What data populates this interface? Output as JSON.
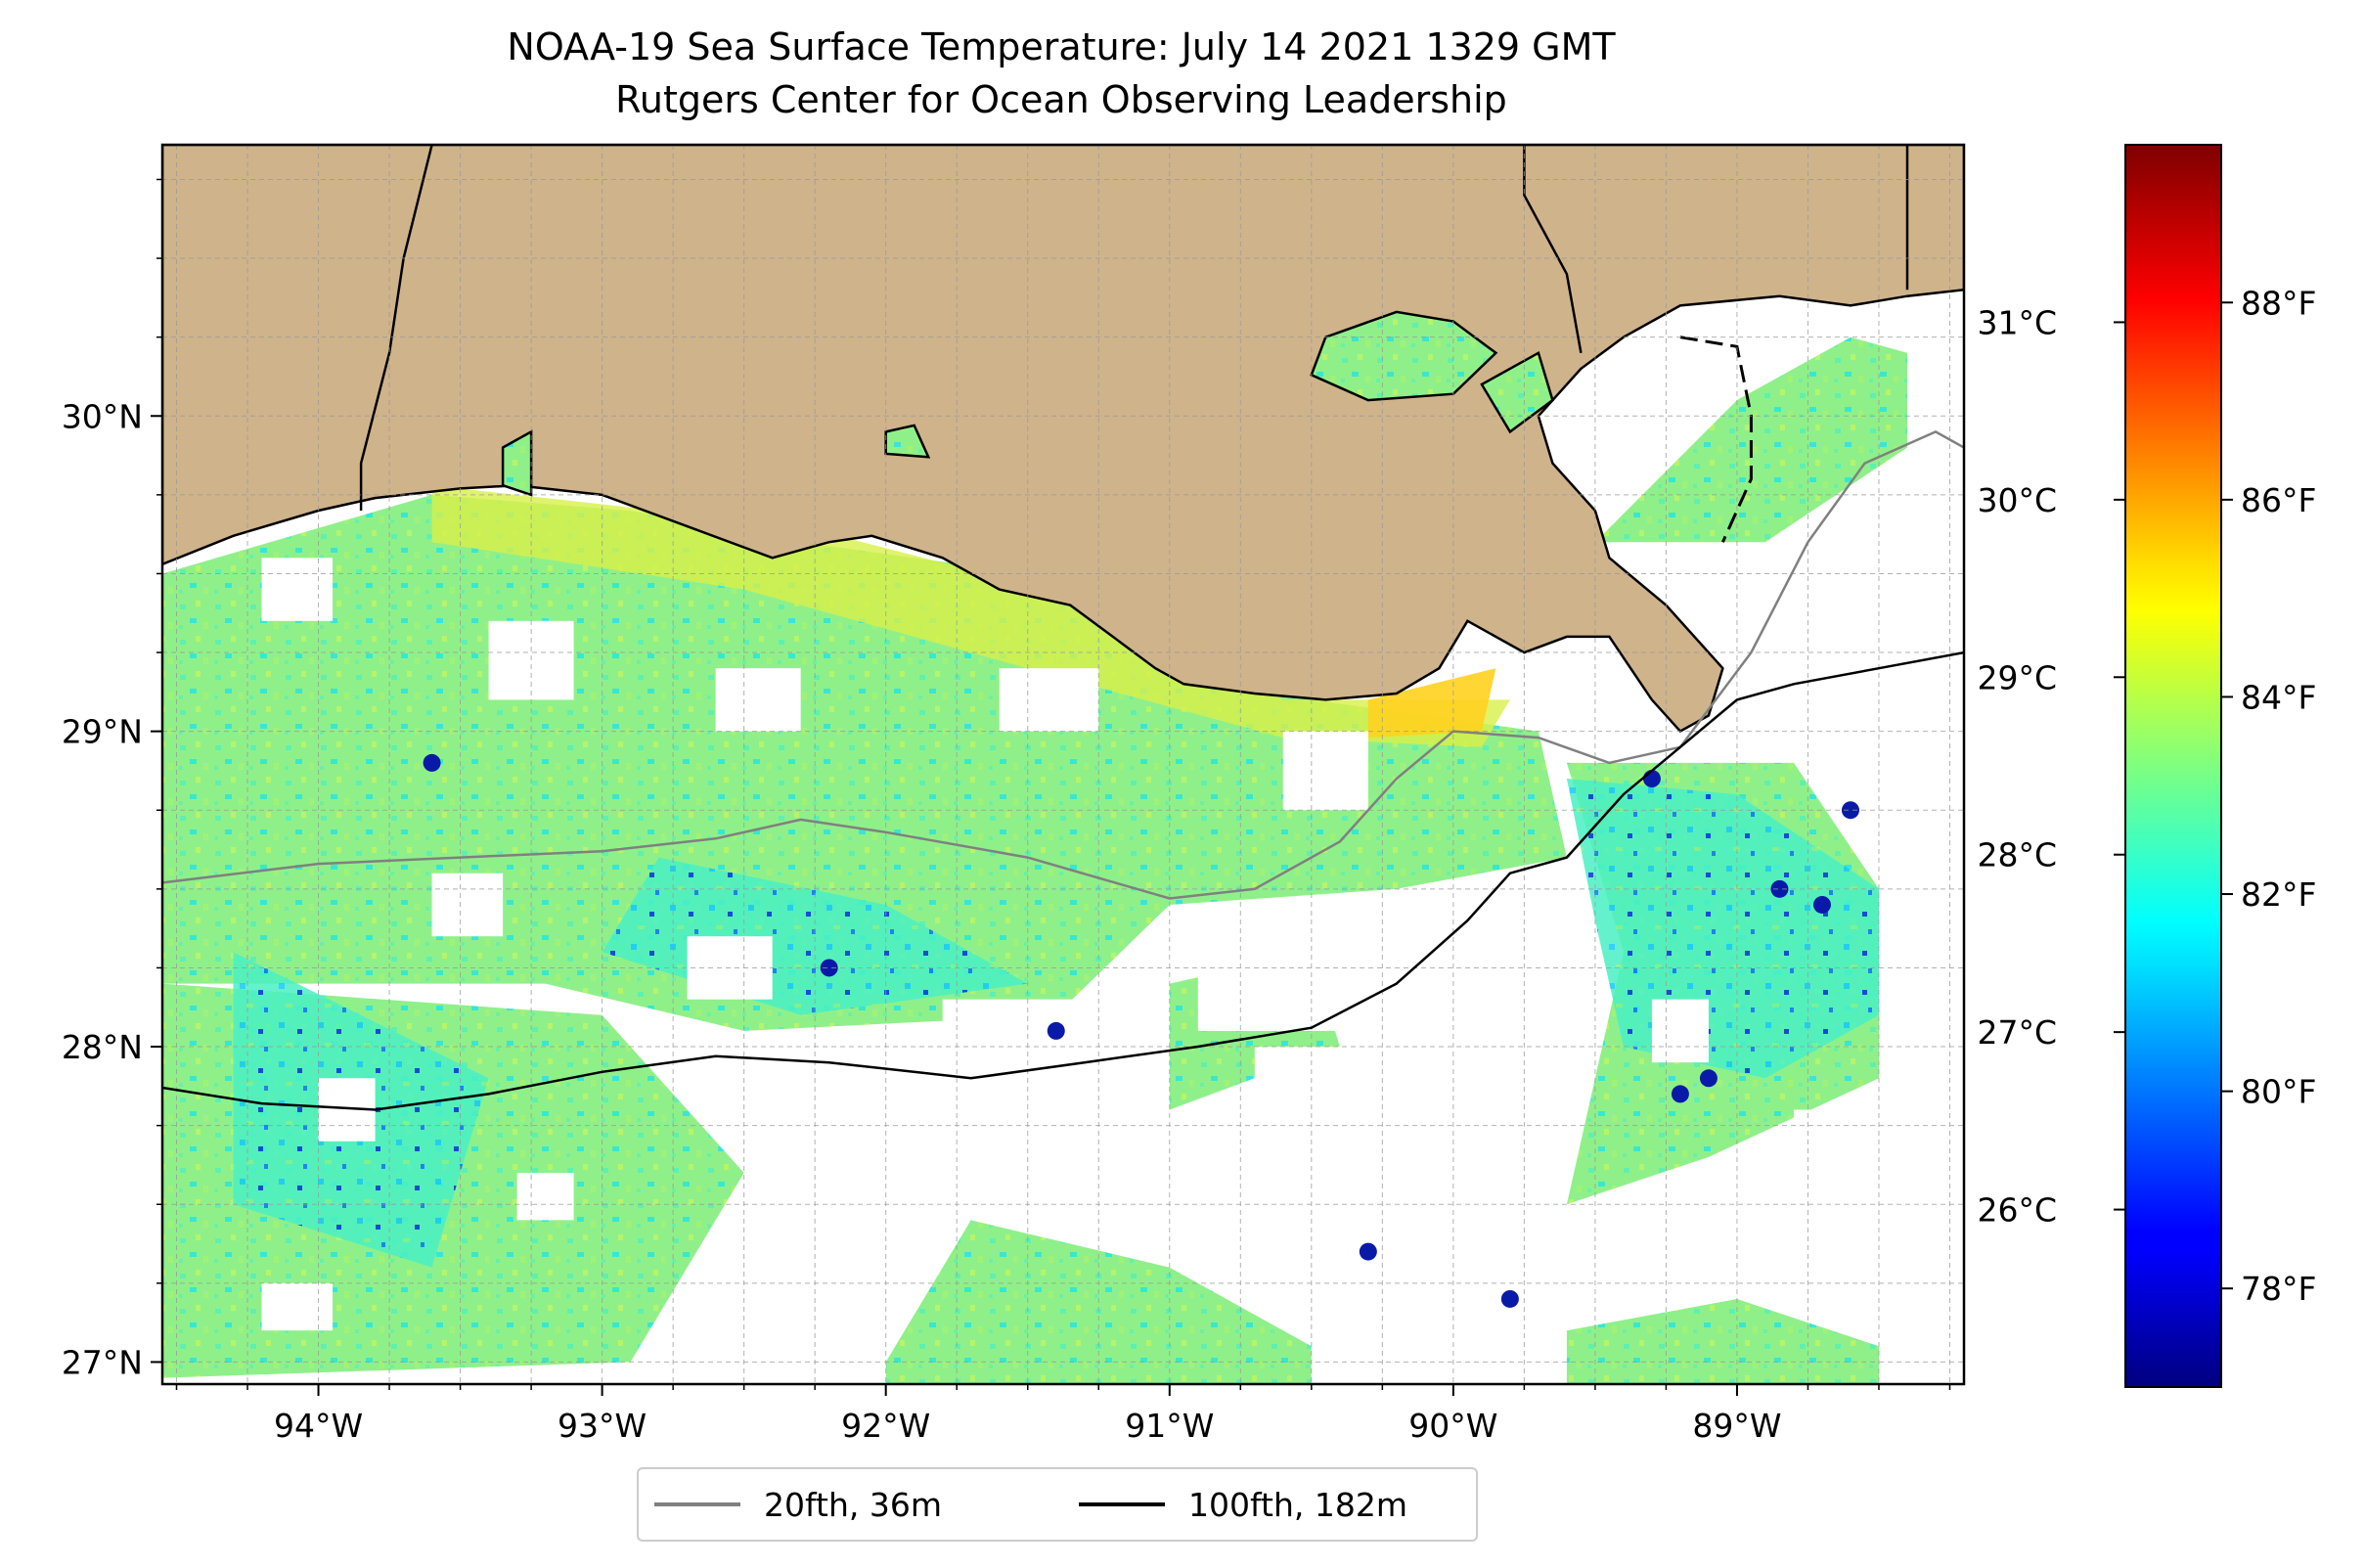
{
  "title": {
    "line1": "NOAA-19 Sea Surface Temperature: July 14 2021 1329 GMT",
    "line2": "Rutgers Center for Ocean Observing Leadership"
  },
  "map": {
    "lon_range": [
      -94.55,
      -88.2
    ],
    "lat_range": [
      26.93,
      30.86
    ],
    "grid": true,
    "land_color": "#cfb38b",
    "missing_data_color": "#ffffff"
  },
  "axes": {
    "lon_ticks": [
      {
        "value": -94,
        "label": "94°W"
      },
      {
        "value": -93,
        "label": "93°W"
      },
      {
        "value": -92,
        "label": "92°W"
      },
      {
        "value": -91,
        "label": "91°W"
      },
      {
        "value": -90,
        "label": "90°W"
      },
      {
        "value": -89,
        "label": "89°W"
      }
    ],
    "lat_ticks": [
      {
        "value": 30,
        "label": "30°N"
      },
      {
        "value": 29,
        "label": "29°N"
      },
      {
        "value": 28,
        "label": "28°N"
      },
      {
        "value": 27,
        "label": "27°N"
      }
    ]
  },
  "colorbar": {
    "colormap": "jet",
    "range_f": [
      77.0,
      89.6
    ],
    "celsius_ticks": [
      {
        "value": 26,
        "label": "26°C"
      },
      {
        "value": 27,
        "label": "27°C"
      },
      {
        "value": 28,
        "label": "28°C"
      },
      {
        "value": 29,
        "label": "29°C"
      },
      {
        "value": 30,
        "label": "30°C"
      },
      {
        "value": 31,
        "label": "31°C"
      }
    ],
    "fahrenheit_ticks": [
      {
        "value": 78,
        "label": "78°F"
      },
      {
        "value": 80,
        "label": "80°F"
      },
      {
        "value": 82,
        "label": "82°F"
      },
      {
        "value": 84,
        "label": "84°F"
      },
      {
        "value": 86,
        "label": "86°F"
      },
      {
        "value": 88,
        "label": "88°F"
      }
    ]
  },
  "legend": {
    "items": [
      {
        "label": "20fth, 36m",
        "color": "#808080"
      },
      {
        "label": "100fth, 182m",
        "color": "#000000"
      }
    ],
    "placement": "bottom-center"
  }
}
